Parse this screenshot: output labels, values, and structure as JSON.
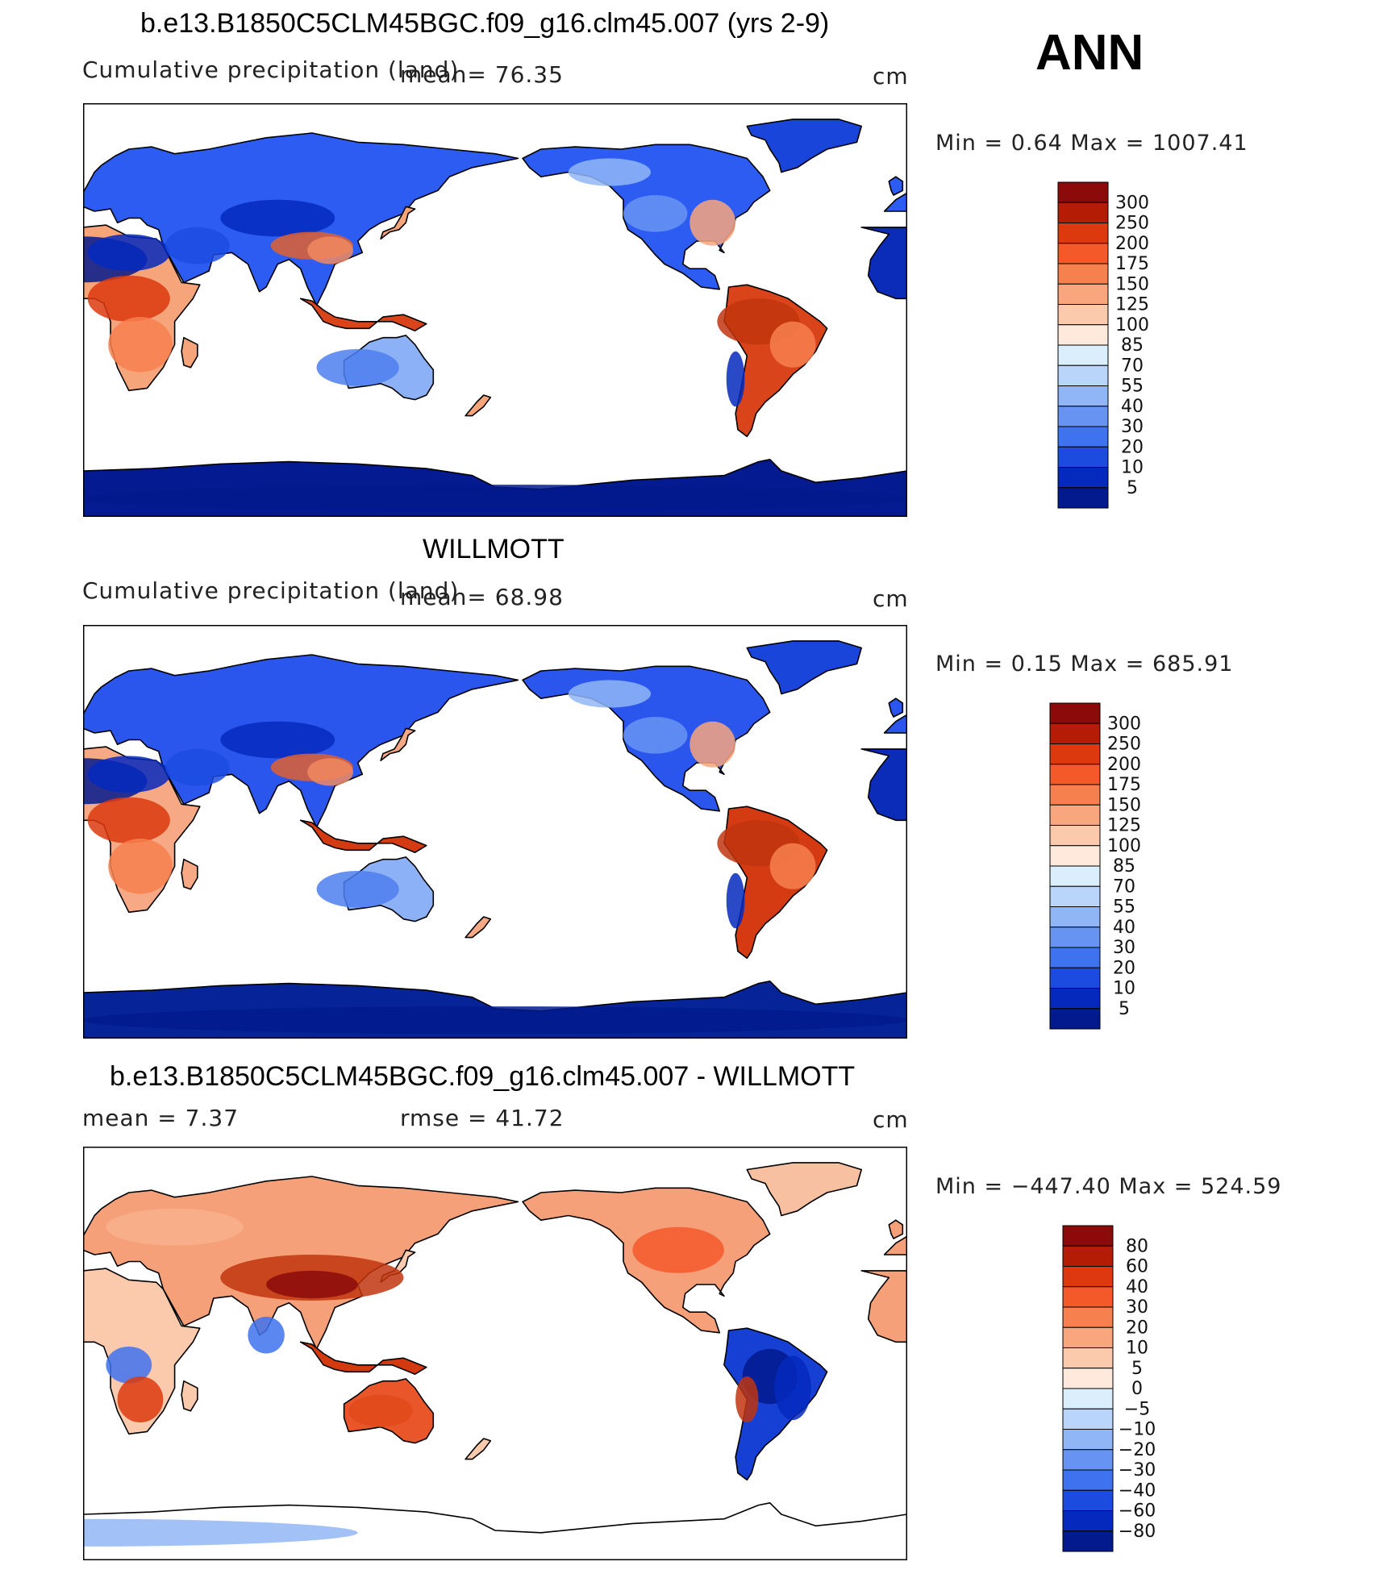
{
  "season": "ANN",
  "panels": [
    {
      "id": "model",
      "title": "b.e13.B1850C5CLM45BGC.f09_g16.clm45.007 (yrs 2-9)",
      "left_text": "Cumulative precipitation (land)",
      "mean_text": "mean=   76.35",
      "rmse_text": "",
      "units": "cm",
      "minmax": "Min  =    0.64  Max  =  1007.41"
    },
    {
      "id": "obs",
      "title": "WILLMOTT",
      "left_text": "Cumulative precipitation (land)",
      "mean_text": "mean=   68.98",
      "rmse_text": "",
      "units": "cm",
      "minmax": "Min  =    0.15  Max  =  685.91"
    },
    {
      "id": "diff",
      "title": "b.e13.B1850C5CLM45BGC.f09_g16.clm45.007 - WILLMOTT",
      "left_text": "mean  =     7.37",
      "mean_text": "rmse  =   41.72",
      "rmse_text": "",
      "units": "cm",
      "minmax": "Min  = −447.40  Max  =  524.59"
    }
  ],
  "chart_data": [
    {
      "type": "heatmap",
      "title": "b.e13.B1850C5CLM45BGC.f09_g16.clm45.007 (yrs 2-9)",
      "variable": "Cumulative precipitation (land)",
      "units": "cm",
      "mean": 76.35,
      "min": 0.64,
      "max": 1007.41,
      "colorbar_levels": [
        "300",
        "250",
        "200",
        "175",
        "150",
        "125",
        "100",
        "85",
        "70",
        "55",
        "40",
        "30",
        "20",
        "10",
        "5"
      ],
      "colorbar_colors": [
        "#8c0a0a",
        "#b51c05",
        "#dc3a0e",
        "#f4592a",
        "#f7804f",
        "#f9a57d",
        "#fbc9ab",
        "#fee9dc",
        "#dbeefc",
        "#b9d5fa",
        "#90b6f6",
        "#6794f2",
        "#3e72ef",
        "#1c4be0",
        "#0529bd",
        "#021a8d"
      ]
    },
    {
      "type": "heatmap",
      "title": "WILLMOTT",
      "variable": "Cumulative precipitation (land)",
      "units": "cm",
      "mean": 68.98,
      "min": 0.15,
      "max": 685.91,
      "colorbar_levels": [
        "300",
        "250",
        "200",
        "175",
        "150",
        "125",
        "100",
        "85",
        "70",
        "55",
        "40",
        "30",
        "20",
        "10",
        "5"
      ],
      "colorbar_colors": [
        "#8c0a0a",
        "#b51c05",
        "#dc3a0e",
        "#f4592a",
        "#f7804f",
        "#f9a57d",
        "#fbc9ab",
        "#fee9dc",
        "#dbeefc",
        "#b9d5fa",
        "#90b6f6",
        "#6794f2",
        "#3e72ef",
        "#1c4be0",
        "#0529bd",
        "#021a8d"
      ]
    },
    {
      "type": "heatmap",
      "title": "b.e13.B1850C5CLM45BGC.f09_g16.clm45.007 - WILLMOTT",
      "units": "cm",
      "mean": 7.37,
      "rmse": 41.72,
      "min": -447.4,
      "max": 524.59,
      "colorbar_levels": [
        "80",
        "60",
        "40",
        "30",
        "20",
        "10",
        "5",
        "0",
        "−5",
        "−10",
        "−20",
        "−30",
        "−40",
        "−60",
        "−80"
      ],
      "colorbar_colors": [
        "#8c0a0a",
        "#b51c05",
        "#dc3a0e",
        "#f4592a",
        "#f7804f",
        "#f9a57d",
        "#fbc9ab",
        "#fee9dc",
        "#dbeefc",
        "#b9d5fa",
        "#90b6f6",
        "#6794f2",
        "#3e72ef",
        "#1c4be0",
        "#0529bd",
        "#021a8d"
      ]
    }
  ]
}
